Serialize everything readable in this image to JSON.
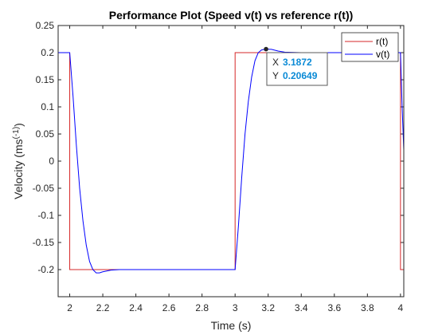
{
  "chart_data": {
    "type": "line",
    "title": "Performance Plot (Speed v(t) vs reference r(t))",
    "xlabel": "Time (s)",
    "ylabel_main": "Velocity (ms",
    "ylabel_sup": "(-1)",
    "ylabel_end": ")",
    "xlim": [
      1.93,
      4.02
    ],
    "ylim": [
      -0.25,
      0.25
    ],
    "xticks": [
      2,
      2.2,
      2.4,
      2.6,
      2.8,
      3,
      3.2,
      3.4,
      3.6,
      3.8,
      4
    ],
    "xtick_labels": [
      "2",
      "2.2",
      "2.4",
      "2.6",
      "2.8",
      "3",
      "3.2",
      "3.4",
      "3.6",
      "3.8",
      "4"
    ],
    "yticks": [
      -0.2,
      -0.15,
      -0.1,
      -0.05,
      0,
      0.05,
      0.1,
      0.15,
      0.2,
      0.25
    ],
    "ytick_labels": [
      "-0.2",
      "-0.15",
      "-0.1",
      "-0.05",
      "0",
      "0.05",
      "0.1",
      "0.15",
      "0.2",
      "0.25"
    ],
    "grid": false,
    "legend_position": "top-right",
    "series": [
      {
        "name": "r(t)",
        "color": "#d62728",
        "x": [
          1.93,
          2.0,
          2.0,
          3.0,
          3.0,
          4.0,
          4.0,
          4.02
        ],
        "y": [
          0.2,
          0.2,
          -0.2,
          -0.2,
          0.2,
          0.2,
          -0.2,
          -0.2
        ]
      },
      {
        "name": "v(t)",
        "color": "#0000ff",
        "x": [
          1.93,
          2.0,
          2.02,
          2.04,
          2.06,
          2.08,
          2.1,
          2.12,
          2.14,
          2.16,
          2.18,
          2.2,
          2.25,
          2.3,
          2.4,
          2.5,
          3.0,
          3.02,
          3.04,
          3.06,
          3.08,
          3.1,
          3.12,
          3.14,
          3.16,
          3.1872,
          3.22,
          3.26,
          3.3,
          3.4,
          3.6,
          4.0,
          4.01,
          4.02
        ],
        "y": [
          0.2,
          0.2,
          0.12,
          0.03,
          -0.05,
          -0.11,
          -0.155,
          -0.185,
          -0.2,
          -0.206,
          -0.206,
          -0.204,
          -0.201,
          -0.2,
          -0.2,
          -0.2,
          -0.2,
          -0.12,
          -0.03,
          0.05,
          0.11,
          0.155,
          0.185,
          0.2,
          0.205,
          0.20649,
          0.206,
          0.203,
          0.201,
          0.2,
          0.2,
          0.2,
          0.1,
          0.02
        ]
      }
    ],
    "datatip": {
      "x_label": "X",
      "x_value": "3.1872",
      "y_label": "Y",
      "y_value": "0.20649",
      "x": 3.1872,
      "y": 0.20649
    }
  }
}
